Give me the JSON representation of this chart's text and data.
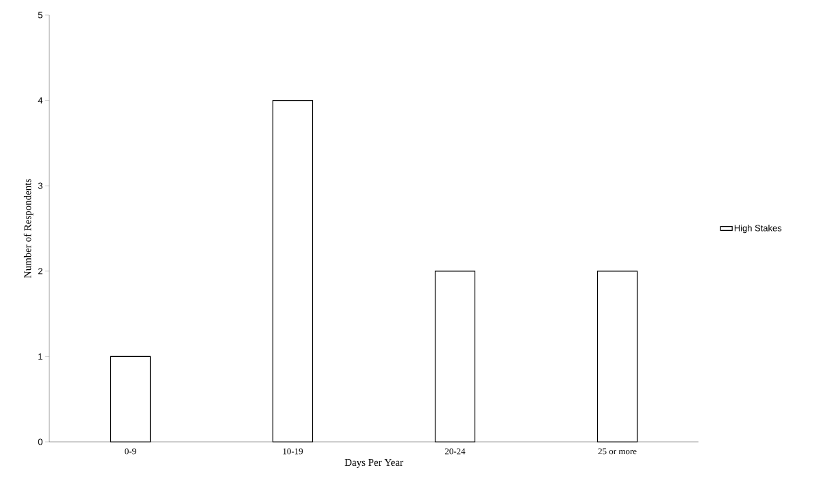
{
  "chart_data": {
    "type": "bar",
    "xlabel": "Days Per Year",
    "ylabel": "Number of Respondents",
    "categories": [
      "0-9",
      "10-19",
      "20-24",
      "25 or more"
    ],
    "series": [
      {
        "name": "High Stakes",
        "color": "#ffffff",
        "values": [
          1,
          4,
          2,
          2
        ]
      }
    ],
    "ylim": [
      0,
      5
    ],
    "yticks": [
      0,
      1,
      2,
      3,
      4,
      5
    ],
    "legend": "right"
  }
}
